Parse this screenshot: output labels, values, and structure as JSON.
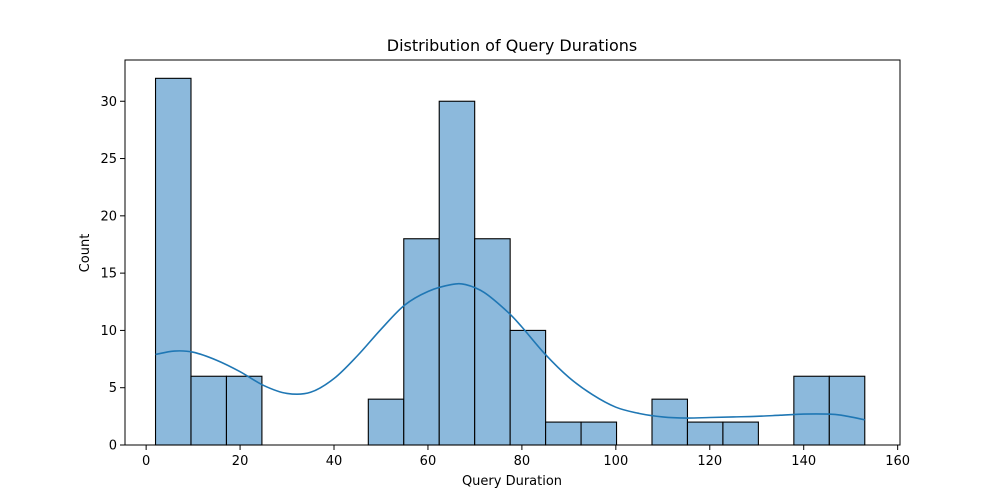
{
  "chart_data": {
    "type": "bar",
    "title": "Distribution of Query Durations",
    "xlabel": "Query Duration",
    "ylabel": "Count",
    "xlim": [
      -4.5,
      160.5
    ],
    "ylim": [
      0,
      33.6
    ],
    "xticks": [
      0,
      20,
      40,
      60,
      80,
      100,
      120,
      140,
      160
    ],
    "yticks": [
      0,
      5,
      10,
      15,
      20,
      25,
      30
    ],
    "bin_edges": [
      2,
      9.55,
      17.1,
      24.65,
      32.2,
      39.75,
      47.3,
      54.85,
      62.4,
      69.95,
      77.5,
      85.05,
      92.6,
      100.15,
      107.7,
      115.25,
      122.8,
      130.35,
      137.9,
      145.45,
      153
    ],
    "counts": [
      32,
      6,
      6,
      0,
      0,
      0,
      4,
      18,
      30,
      18,
      10,
      2,
      2,
      0,
      4,
      2,
      2,
      0,
      6,
      6
    ],
    "kde": {
      "x": [
        2,
        6,
        10,
        15,
        20,
        25,
        30,
        35,
        40,
        45,
        50,
        55,
        60,
        65,
        68,
        72,
        77,
        80,
        85,
        90,
        95,
        100,
        105,
        110,
        115,
        120,
        125,
        130,
        135,
        140,
        145,
        148,
        153
      ],
      "y": [
        7.9,
        8.2,
        8.1,
        7.4,
        6.4,
        5.2,
        4.5,
        4.6,
        5.8,
        7.8,
        10.1,
        12.2,
        13.4,
        14.0,
        14.0,
        13.3,
        11.6,
        10.3,
        7.9,
        5.9,
        4.4,
        3.3,
        2.75,
        2.45,
        2.35,
        2.4,
        2.45,
        2.5,
        2.6,
        2.7,
        2.7,
        2.6,
        2.2
      ]
    },
    "bar_color": "#8cb9dc",
    "kde_color": "#1f77b4",
    "grid": false,
    "legend": false
  }
}
